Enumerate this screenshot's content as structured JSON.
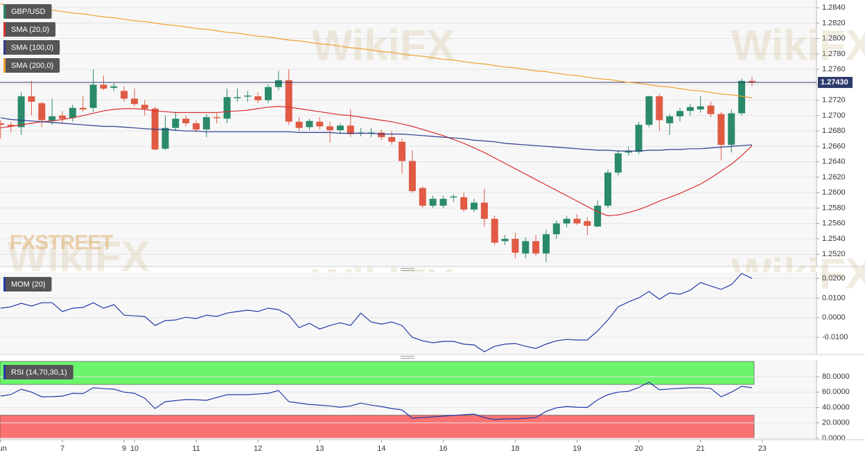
{
  "chart_data": [
    {
      "type": "candlestick",
      "title": "GBP/USD",
      "categories": [
        "Jun",
        null,
        null,
        null,
        null,
        null,
        "7",
        null,
        null,
        null,
        null,
        null,
        "9",
        "10",
        null,
        null,
        null,
        null,
        null,
        "11",
        null,
        null,
        null,
        null,
        null,
        "12",
        null,
        null,
        null,
        null,
        null,
        "13",
        null,
        null,
        null,
        null,
        null,
        "14",
        null,
        null,
        null,
        null,
        null,
        "16",
        null,
        null,
        null,
        null,
        null,
        null,
        "18",
        null,
        null,
        null,
        null,
        null,
        "19",
        null,
        null,
        null,
        null,
        null,
        "20",
        null,
        null,
        null,
        null,
        null,
        "21",
        null,
        null,
        null,
        null,
        null,
        "23"
      ],
      "open": [
        1.269,
        1.2688,
        1.2685,
        1.2725,
        1.2716,
        1.2693,
        1.27,
        1.2697,
        1.271,
        1.271,
        1.274,
        1.2736,
        1.2732,
        1.2722,
        1.2714,
        1.2709,
        1.2657,
        1.2684,
        1.2696,
        1.269,
        1.2682,
        1.2698,
        1.2696,
        1.2724,
        1.2725,
        1.2725,
        1.272,
        1.2737,
        1.2746,
        1.2692,
        1.2685,
        1.2692,
        1.2686,
        1.2681,
        1.2687,
        1.2677,
        1.2678,
        1.2678,
        1.2672,
        1.2666,
        1.2641,
        1.2606,
        1.2583,
        1.2583,
        1.2594,
        1.2594,
        1.2578,
        1.2587,
        1.2566,
        1.2537,
        1.254,
        1.2521,
        1.2537,
        1.2521,
        1.2546,
        1.256,
        1.2566,
        1.2563,
        1.2556,
        1.2583,
        1.2626,
        1.2652,
        1.2653,
        1.2688,
        1.2725,
        1.269,
        1.2699,
        1.2706,
        1.2708,
        1.2713,
        1.2702,
        1.2662,
        1.2703,
        1.2745,
        null
      ],
      "high": [
        1.2694,
        1.2692,
        1.273,
        1.2745,
        1.2718,
        1.2722,
        1.2706,
        1.2714,
        1.2725,
        1.276,
        1.2752,
        1.2742,
        1.2738,
        1.2735,
        1.272,
        1.2712,
        1.27,
        1.2705,
        1.27,
        1.2694,
        1.2702,
        1.2703,
        1.2735,
        1.2735,
        1.2732,
        1.273,
        1.274,
        1.2758,
        1.276,
        1.2698,
        1.2696,
        1.2698,
        1.2692,
        1.269,
        1.2708,
        1.2684,
        1.2684,
        1.2682,
        1.268,
        1.267,
        1.2655,
        1.2608,
        1.2596,
        1.2596,
        1.2598,
        1.26,
        1.2592,
        1.2605,
        1.257,
        1.2545,
        1.2548,
        1.2542,
        1.2545,
        1.2552,
        1.2564,
        1.257,
        1.2572,
        1.2568,
        1.259,
        1.263,
        1.2655,
        1.266,
        1.2692,
        1.2726,
        1.2728,
        1.2702,
        1.271,
        1.2715,
        1.2725,
        1.2718,
        1.2705,
        1.2708,
        1.2748,
        1.275,
        null
      ],
      "low": [
        1.267,
        1.2678,
        1.2675,
        1.27,
        1.2685,
        1.2688,
        1.269,
        1.2692,
        1.2705,
        1.2705,
        1.2733,
        1.2732,
        1.2718,
        1.2712,
        1.27,
        1.2655,
        1.2655,
        1.268,
        1.2686,
        1.2678,
        1.2672,
        1.269,
        1.269,
        1.2718,
        1.2718,
        1.2716,
        1.2716,
        1.2733,
        1.2688,
        1.268,
        1.2681,
        1.2682,
        1.2665,
        1.2676,
        1.2672,
        1.2673,
        1.2672,
        1.2668,
        1.2662,
        1.2625,
        1.26,
        1.258,
        1.258,
        1.258,
        1.2588,
        1.2575,
        1.2575,
        1.2556,
        1.2532,
        1.2532,
        1.2515,
        1.2515,
        1.2518,
        1.251,
        1.254,
        1.2555,
        1.2558,
        1.2545,
        1.2555,
        1.258,
        1.2622,
        1.2648,
        1.265,
        1.2685,
        1.268,
        1.2675,
        1.2692,
        1.27,
        1.2704,
        1.2698,
        1.2642,
        1.2652,
        1.27,
        1.2738,
        null
      ],
      "close": [
        1.2688,
        1.2686,
        1.2725,
        1.2718,
        1.2694,
        1.2699,
        1.2696,
        1.271,
        1.2708,
        1.274,
        1.2735,
        1.2738,
        1.2722,
        1.2715,
        1.2709,
        1.2656,
        1.2684,
        1.2696,
        1.269,
        1.2682,
        1.2698,
        1.2697,
        1.2724,
        1.2724,
        1.2726,
        1.272,
        1.2737,
        1.2746,
        1.2692,
        1.2684,
        1.2693,
        1.2686,
        1.2681,
        1.2687,
        1.2676,
        1.2678,
        1.2678,
        1.2672,
        1.2666,
        1.2641,
        1.2602,
        1.2583,
        1.2592,
        1.2592,
        1.2595,
        1.2578,
        1.2587,
        1.2566,
        1.2535,
        1.254,
        1.2522,
        1.2537,
        1.2521,
        1.2546,
        1.256,
        1.2566,
        1.256,
        1.2557,
        1.2583,
        1.2626,
        1.2651,
        1.2654,
        1.2688,
        1.2725,
        1.2694,
        1.2699,
        1.2706,
        1.2711,
        1.2712,
        1.2702,
        1.2662,
        1.2703,
        1.2745,
        1.2743,
        null
      ],
      "up_color": "#2a8a6a",
      "down_color": "#e05a44",
      "series": [
        {
          "name": "SMA (20,0)",
          "color": "#d92d2d",
          "values": [
            1.2684,
            1.2686,
            1.2688,
            1.269,
            1.2692,
            1.2693,
            1.2695,
            1.2697,
            1.27,
            1.2703,
            1.2706,
            1.2708,
            1.2709,
            1.2709,
            1.2708,
            1.2706,
            1.2705,
            1.2704,
            1.2704,
            1.2704,
            1.2704,
            1.2704,
            1.2705,
            1.2706,
            1.2707,
            1.2709,
            1.2711,
            1.2712,
            1.2711,
            1.2709,
            1.2707,
            1.2705,
            1.2703,
            1.2701,
            1.27,
            1.2698,
            1.2696,
            1.2694,
            1.2692,
            1.2689,
            1.2686,
            1.2682,
            1.2678,
            1.2674,
            1.2669,
            1.2664,
            1.2658,
            1.2652,
            1.2645,
            1.2638,
            1.2631,
            1.2624,
            1.2617,
            1.261,
            1.2603,
            1.2596,
            1.2589,
            1.2582,
            1.2575,
            1.257,
            1.2571,
            1.2574,
            1.2578,
            1.2583,
            1.2589,
            1.2594,
            1.2599,
            1.2605,
            1.2611,
            1.2619,
            1.2628,
            1.2637,
            1.2648,
            1.2661,
            null
          ]
        },
        {
          "name": "SMA (100,0)",
          "color": "#2c3a8c",
          "values": [
            1.2697,
            1.2695,
            1.2694,
            1.2693,
            1.2692,
            1.2691,
            1.269,
            1.2689,
            1.2688,
            1.2687,
            1.2686,
            1.2686,
            1.2685,
            1.2684,
            1.2683,
            1.2682,
            1.2682,
            1.2681,
            1.268,
            1.268,
            1.2679,
            1.2679,
            1.2679,
            1.2679,
            1.2679,
            1.2679,
            1.2679,
            1.2679,
            1.2679,
            1.2678,
            1.2678,
            1.2678,
            1.2678,
            1.2677,
            1.2677,
            1.2677,
            1.2677,
            1.2676,
            1.2676,
            1.2676,
            1.2675,
            1.2674,
            1.2673,
            1.2672,
            1.2671,
            1.267,
            1.2668,
            1.2667,
            1.2666,
            1.2664,
            1.2663,
            1.2662,
            1.2661,
            1.266,
            1.2659,
            1.2658,
            1.2657,
            1.2656,
            1.2655,
            1.2655,
            1.2654,
            1.2654,
            1.2654,
            1.2655,
            1.2655,
            1.2656,
            1.2656,
            1.2657,
            1.2657,
            1.2658,
            1.2659,
            1.266,
            1.2661,
            1.2662,
            null
          ]
        },
        {
          "name": "SMA (200,0)",
          "color": "#f0a030",
          "values": [
            1.2845,
            1.2843,
            1.2842,
            1.284,
            1.2838,
            1.2837,
            1.2835,
            1.2833,
            1.2832,
            1.283,
            1.2828,
            1.2827,
            1.2825,
            1.2823,
            1.2822,
            1.282,
            1.2818,
            1.2817,
            1.2815,
            1.2813,
            1.2812,
            1.281,
            1.2808,
            1.2807,
            1.2805,
            1.2803,
            1.2802,
            1.28,
            1.2798,
            1.2797,
            1.2795,
            1.2793,
            1.2792,
            1.279,
            1.2788,
            1.2787,
            1.2785,
            1.2783,
            1.2782,
            1.278,
            1.2778,
            1.2777,
            1.2775,
            1.2773,
            1.2772,
            1.277,
            1.2768,
            1.2767,
            1.2765,
            1.2763,
            1.2762,
            1.276,
            1.2758,
            1.2757,
            1.2755,
            1.2753,
            1.2752,
            1.275,
            1.2748,
            1.2747,
            1.2745,
            1.2743,
            1.2742,
            1.274,
            1.2738,
            1.2737,
            1.2735,
            1.2733,
            1.2732,
            1.273,
            1.2728,
            1.2727,
            1.2725,
            1.2723,
            null
          ]
        }
      ],
      "last_price": {
        "value": 1.2743,
        "label": "1.27430"
      },
      "ylim": [
        1.2504,
        1.285
      ],
      "yticks": [
        {
          "value": 1.252,
          "label": "1.2520"
        },
        {
          "value": 1.254,
          "label": "1.2540"
        },
        {
          "value": 1.256,
          "label": "1.2560"
        },
        {
          "value": 1.258,
          "label": "1.2580"
        },
        {
          "value": 1.26,
          "label": "1.2600"
        },
        {
          "value": 1.262,
          "label": "1.2620"
        },
        {
          "value": 1.264,
          "label": "1.2640"
        },
        {
          "value": 1.266,
          "label": "1.2660"
        },
        {
          "value": 1.268,
          "label": "1.2680"
        },
        {
          "value": 1.27,
          "label": "1.2700"
        },
        {
          "value": 1.272,
          "label": "1.2720"
        },
        {
          "value": 1.274,
          "label": "1.2740"
        },
        {
          "value": 1.276,
          "label": "1.2760"
        },
        {
          "value": 1.278,
          "label": "1.2780"
        },
        {
          "value": 1.28,
          "label": "1.2800"
        },
        {
          "value": 1.282,
          "label": "1.2820"
        },
        {
          "value": 1.284,
          "label": "1.2840"
        }
      ],
      "watermark": "FXSTREET",
      "background_mark": "WikiFX"
    },
    {
      "type": "line",
      "series": [
        {
          "name": "MOM (20)",
          "color": "#2438a8",
          "values": [
            0.0048,
            0.0055,
            0.0073,
            0.0059,
            0.0076,
            0.0076,
            0.0031,
            0.0048,
            0.0052,
            0.0076,
            0.0048,
            0.0066,
            0.0013,
            0.0009,
            0.0006,
            -0.004,
            -0.0015,
            -0.0012,
            0.0002,
            -0.0005,
            0.0013,
            0.0006,
            0.0023,
            0.0031,
            0.0038,
            0.0031,
            0.0048,
            0.0041,
            0.0013,
            -0.0051,
            -0.0029,
            -0.0058,
            -0.004,
            -0.0026,
            -0.004,
            0.0023,
            -0.0022,
            -0.0033,
            -0.0022,
            -0.004,
            -0.01,
            -0.0118,
            -0.0128,
            -0.0121,
            -0.0121,
            -0.0135,
            -0.0139,
            -0.0174,
            -0.0146,
            -0.0135,
            -0.0132,
            -0.0146,
            -0.0157,
            -0.0135,
            -0.0118,
            -0.0111,
            -0.0114,
            -0.0114,
            -0.0068,
            -0.0012,
            0.0055,
            0.008,
            0.0101,
            0.0133,
            0.0094,
            0.0126,
            0.0119,
            0.014,
            0.0179,
            0.0161,
            0.0144,
            0.0168,
            0.0225,
            0.02,
            null
          ]
        }
      ],
      "ylim": [
        -0.0188,
        0.0232
      ],
      "yticks": [
        {
          "value": -0.01,
          "label": "-0.0100"
        },
        {
          "value": 0,
          "label": "0.0000"
        },
        {
          "value": 0.01,
          "label": "0.0100"
        },
        {
          "value": 0.02,
          "label": "0.0200"
        }
      ]
    },
    {
      "type": "line",
      "series": [
        {
          "name": "RSI (14,70,30,1)",
          "color": "#2438a8",
          "values": [
            54.8,
            57,
            63.8,
            60,
            53.9,
            54,
            54.8,
            58.4,
            58,
            65.6,
            64.5,
            63.8,
            60,
            58.4,
            52.1,
            38.7,
            47.6,
            49,
            50.3,
            50,
            49.4,
            53,
            56.6,
            56.6,
            56.6,
            57.5,
            58.4,
            62,
            47.6,
            45.8,
            44,
            43.1,
            42,
            40.4,
            42,
            45.8,
            43,
            41.3,
            38.7,
            36.9,
            26.1,
            27,
            27.9,
            28.8,
            29.7,
            30.6,
            31.5,
            27,
            24.3,
            25.2,
            25.2,
            26,
            27,
            35,
            39.6,
            41.3,
            40.4,
            40,
            50,
            56.6,
            60,
            61,
            66,
            72.8,
            63,
            64,
            64.8,
            65.6,
            65.6,
            64.8,
            53.9,
            60,
            67.5,
            65.6,
            null
          ]
        }
      ],
      "bands": [
        {
          "from": 70,
          "to": 100,
          "color": "#6cf56c"
        },
        {
          "from": 0,
          "to": 30,
          "color": "#fb7272"
        }
      ],
      "ylim": [
        -1.8,
        101.6
      ],
      "yticks": [
        {
          "value": 0,
          "label": "0.0000"
        },
        {
          "value": 20,
          "label": "20.0000"
        },
        {
          "value": 40,
          "label": "40.0000"
        },
        {
          "value": 60,
          "label": "60.0000"
        },
        {
          "value": 80,
          "label": "80.0000"
        }
      ]
    }
  ]
}
